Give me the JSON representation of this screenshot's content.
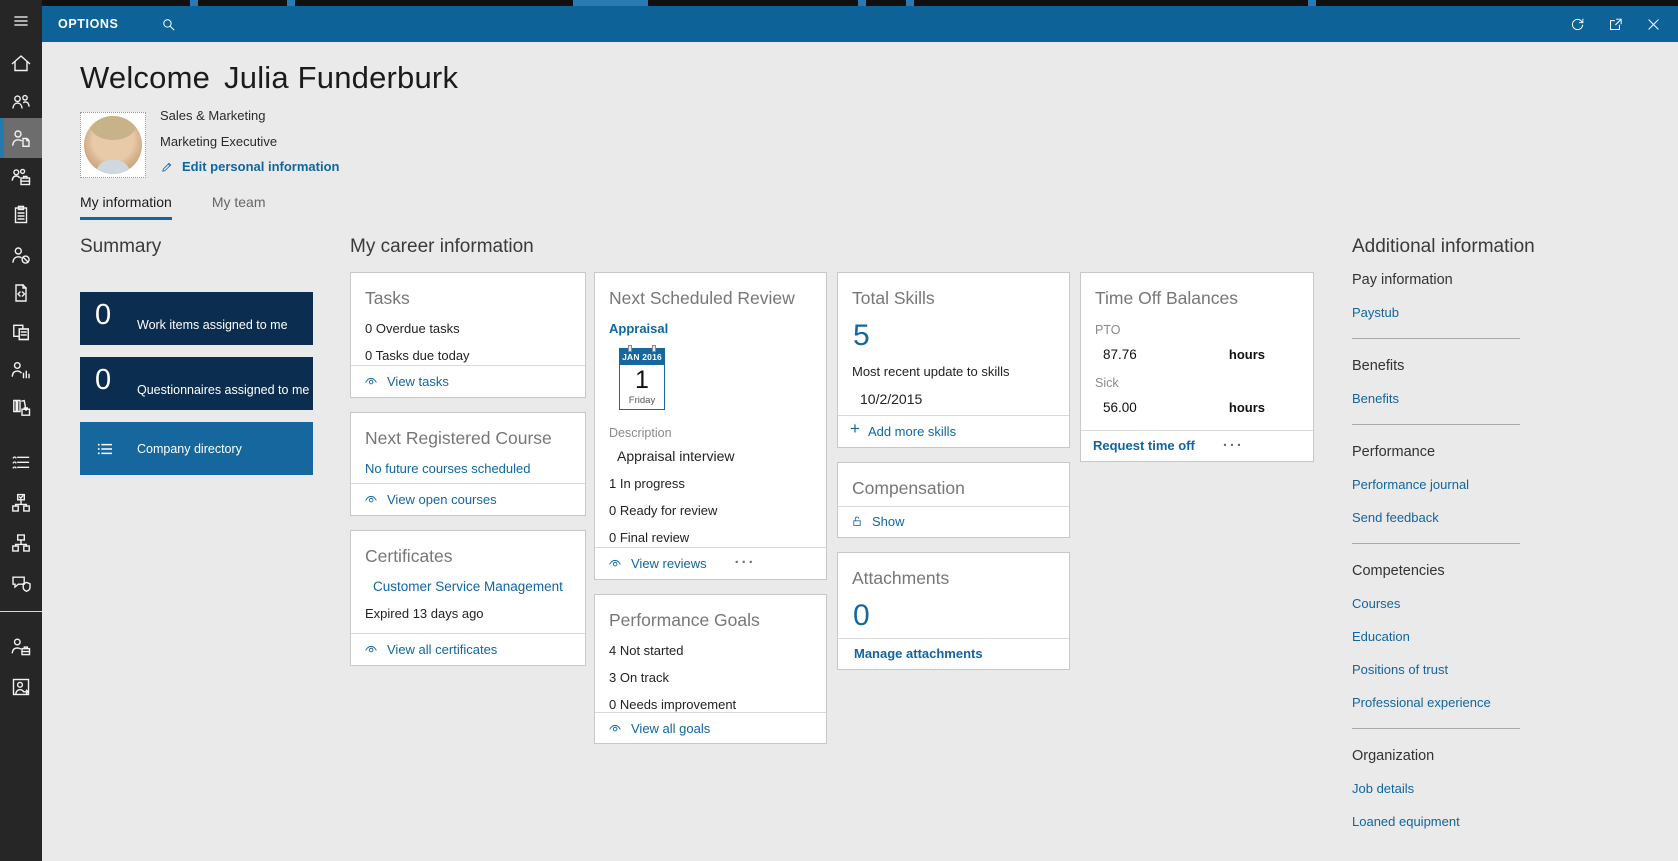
{
  "colors": {
    "topbar": "#0d6298",
    "accent": "#15679e",
    "link": "#1066a1",
    "navy": "#0b2d4f",
    "page_bg": "#eaeaea"
  },
  "topbar": {
    "title": "OPTIONS"
  },
  "sidebar": {
    "items": [
      {
        "name": "home",
        "icon": "home",
        "selected": false
      },
      {
        "name": "people",
        "icon": "people",
        "selected": false
      },
      {
        "name": "employee-self-service",
        "icon": "person-page",
        "selected": true
      },
      {
        "name": "people-briefcase",
        "icon": "people-case",
        "selected": false
      },
      {
        "name": "clipboard",
        "icon": "clipboard",
        "selected": false
      },
      {
        "name": "person-restricted",
        "icon": "person-block",
        "selected": false
      },
      {
        "name": "document-transfer",
        "icon": "doc-transfer",
        "selected": false
      },
      {
        "name": "documents-calculator",
        "icon": "docs-calc",
        "selected": false
      },
      {
        "name": "person-chart",
        "icon": "person-chart",
        "selected": false
      },
      {
        "name": "books-briefcase",
        "icon": "books-case",
        "selected": false
      },
      {
        "name": "checklist",
        "icon": "checklist",
        "selected": false
      },
      {
        "name": "orgchart-check",
        "icon": "org-check",
        "selected": false
      },
      {
        "name": "orgchart",
        "icon": "org",
        "selected": false
      },
      {
        "name": "feedback-shield",
        "icon": "chat-shield",
        "selected": false
      },
      {
        "name": "person-briefcase",
        "icon": "person-case2",
        "selected": false
      },
      {
        "name": "person-badge",
        "icon": "person-badge",
        "selected": false
      }
    ]
  },
  "header": {
    "greeting": "Welcome",
    "user_name": "Julia Funderburk",
    "department": "Sales & Marketing",
    "job_title": "Marketing Executive",
    "edit_link": "Edit personal information"
  },
  "tabs": {
    "my_information": "My information",
    "my_team": "My team"
  },
  "summary": {
    "heading": "Summary",
    "tile_work": {
      "count": "0",
      "label": "Work items assigned to me"
    },
    "tile_questionnaires": {
      "count": "0",
      "label": "Questionnaires assigned to me"
    },
    "tile_directory": {
      "label": "Company directory"
    }
  },
  "career": {
    "heading": "My career information",
    "tasks": {
      "title": "Tasks",
      "lines": [
        "0 Overdue tasks",
        "0 Tasks due today"
      ],
      "footer": "View tasks"
    },
    "next_course": {
      "title": "Next Registered Course",
      "link": "No future courses scheduled",
      "footer": "View open courses"
    },
    "certificates": {
      "title": "Certificates",
      "link": "Customer Service Management",
      "note": "Expired 13 days ago",
      "footer": "View all certificates"
    },
    "next_review": {
      "title": "Next Scheduled Review",
      "link": "Appraisal",
      "calendar": {
        "month": "JAN 2016",
        "day": "1",
        "weekday": "Friday"
      },
      "description_label": "Description",
      "description": "Appraisal interview",
      "lines": [
        "1 In progress",
        "0 Ready for review",
        "0 Final review"
      ],
      "footer": "View reviews",
      "more": "···"
    },
    "goals": {
      "title": "Performance Goals",
      "lines": [
        "4 Not started",
        "3 On track",
        "0 Needs improvement"
      ],
      "footer": "View all goals"
    },
    "skills": {
      "title": "Total Skills",
      "count": "5",
      "label": "Most recent update to skills",
      "date": "10/2/2015",
      "footer": "Add more skills"
    },
    "compensation": {
      "title": "Compensation",
      "footer": "Show"
    },
    "attachments": {
      "title": "Attachments",
      "count": "0",
      "footer": "Manage attachments"
    },
    "time_off": {
      "title": "Time Off Balances",
      "rows": [
        {
          "label": "PTO",
          "value": "87.76",
          "unit": "hours"
        },
        {
          "label": "Sick",
          "value": "56.00",
          "unit": "hours"
        }
      ],
      "footer": "Request time off",
      "more": "···"
    }
  },
  "additional": {
    "heading": "Additional information",
    "groups": [
      {
        "title": "Pay information",
        "links": [
          "Paystub"
        ]
      },
      {
        "title": "Benefits",
        "links": [
          "Benefits"
        ]
      },
      {
        "title": "Performance",
        "links": [
          "Performance journal",
          "Send feedback"
        ]
      },
      {
        "title": "Competencies",
        "links": [
          "Courses",
          "Education",
          "Positions of trust",
          "Professional experience"
        ]
      },
      {
        "title": "Organization",
        "links": [
          "Job details",
          "Loaned equipment"
        ]
      }
    ]
  }
}
